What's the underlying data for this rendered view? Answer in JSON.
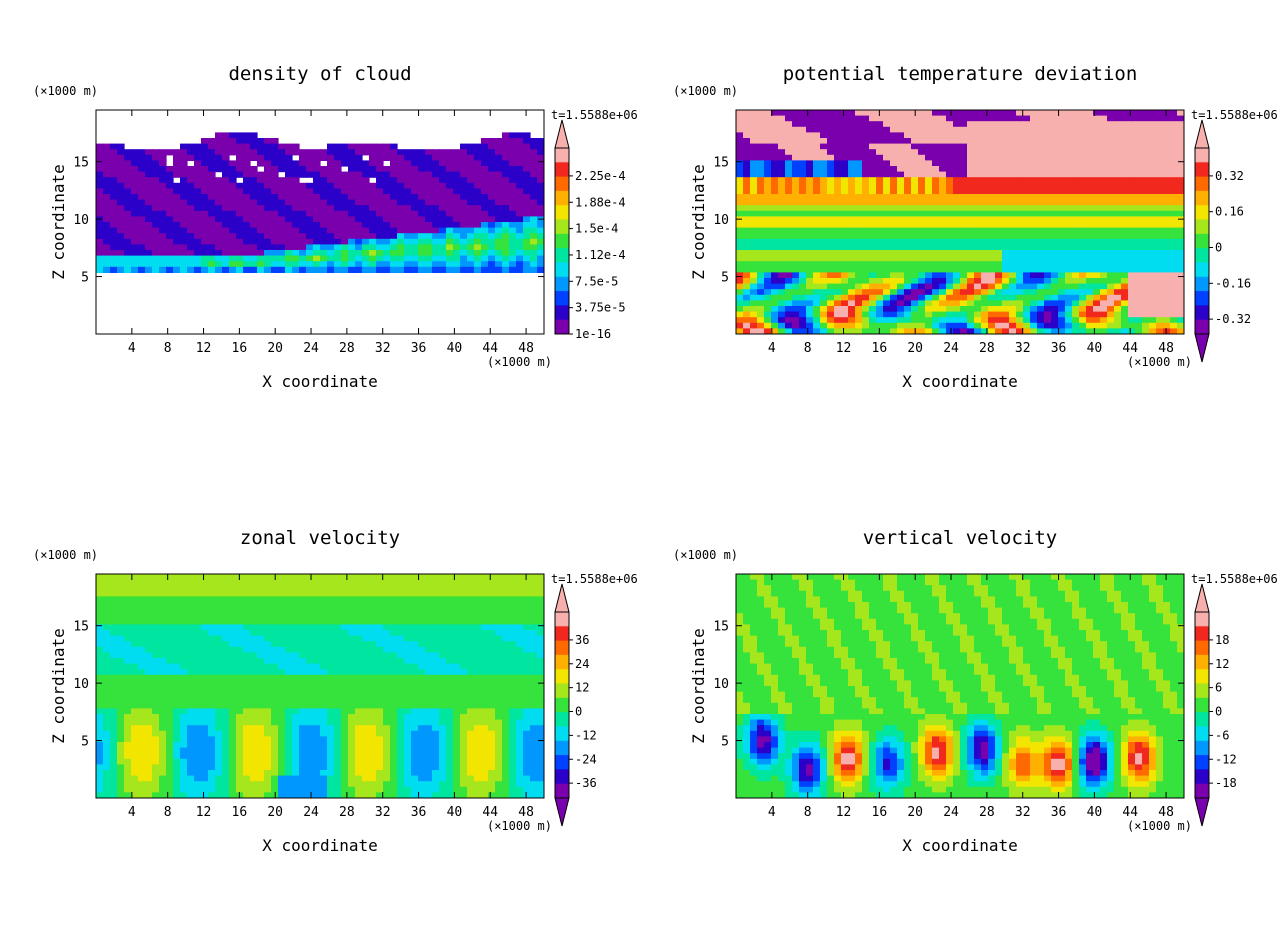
{
  "chart_data": [
    {
      "type": "heatmap",
      "title": "density of cloud",
      "xlabel": "X coordinate",
      "ylabel": "Z coordinate",
      "x_unit": "(×1000 m)",
      "y_unit": "(×1000 m)",
      "time_label": "t=1.5588e+06",
      "xlim": [
        0,
        50
      ],
      "ylim": [
        0,
        19.5
      ],
      "xticks": [
        "4",
        "8",
        "12",
        "16",
        "20",
        "24",
        "28",
        "32",
        "36",
        "40",
        "44",
        "48"
      ],
      "yticks": [
        "5",
        "10",
        "15"
      ],
      "colorbar": {
        "labels": [
          "2.25e-4",
          "1.88e-4",
          "1.5e-4",
          "1.12e-4",
          "7.5e-5",
          "3.75e-5",
          "1e-16"
        ],
        "arrow_top": true,
        "arrow_bottom": false
      },
      "pattern": "cloud"
    },
    {
      "type": "heatmap",
      "title": "potential temperature deviation",
      "xlabel": "X coordinate",
      "ylabel": "Z coordinate",
      "x_unit": "(×1000 m)",
      "y_unit": "(×1000 m)",
      "time_label": "t=1.5588e+06",
      "xlim": [
        0,
        50
      ],
      "ylim": [
        0,
        19.5
      ],
      "xticks": [
        "4",
        "8",
        "12",
        "16",
        "20",
        "24",
        "28",
        "32",
        "36",
        "40",
        "44",
        "48"
      ],
      "yticks": [
        "5",
        "10",
        "15"
      ],
      "colorbar": {
        "labels": [
          "0.32",
          "0.16",
          "0",
          "-0.16",
          "-0.32"
        ],
        "arrow_top": true,
        "arrow_bottom": true
      },
      "pattern": "theta"
    },
    {
      "type": "heatmap",
      "title": "zonal velocity",
      "xlabel": "X coordinate",
      "ylabel": "Z coordinate",
      "x_unit": "(×1000 m)",
      "y_unit": "(×1000 m)",
      "time_label": "t=1.5588e+06",
      "xlim": [
        0,
        50
      ],
      "ylim": [
        0,
        19.5
      ],
      "xticks": [
        "4",
        "8",
        "12",
        "16",
        "20",
        "24",
        "28",
        "32",
        "36",
        "40",
        "44",
        "48"
      ],
      "yticks": [
        "5",
        "10",
        "15"
      ],
      "colorbar": {
        "labels": [
          "36",
          "24",
          "12",
          "0",
          "-12",
          "-24",
          "-36"
        ],
        "arrow_top": true,
        "arrow_bottom": true
      },
      "pattern": "zonal"
    },
    {
      "type": "heatmap",
      "title": "vertical velocity",
      "xlabel": "X coordinate",
      "ylabel": "Z coordinate",
      "x_unit": "(×1000 m)",
      "y_unit": "(×1000 m)",
      "time_label": "t=1.5588e+06",
      "xlim": [
        0,
        50
      ],
      "ylim": [
        0,
        19.5
      ],
      "xticks": [
        "4",
        "8",
        "12",
        "16",
        "20",
        "24",
        "28",
        "32",
        "36",
        "40",
        "44",
        "48"
      ],
      "yticks": [
        "5",
        "10",
        "15"
      ],
      "colorbar": {
        "labels": [
          "18",
          "12",
          "6",
          "0",
          "-6",
          "-12",
          "-18"
        ],
        "arrow_top": true,
        "arrow_bottom": true
      },
      "pattern": "vertical"
    }
  ],
  "colors": {
    "palette": [
      "#7a00ad",
      "#2b00c8",
      "#0040ff",
      "#0098ff",
      "#00dcf0",
      "#00e6a0",
      "#36e23c",
      "#a6e61c",
      "#f2e600",
      "#ffb000",
      "#ff6a00",
      "#f0281e",
      "#f7b0ad"
    ]
  }
}
